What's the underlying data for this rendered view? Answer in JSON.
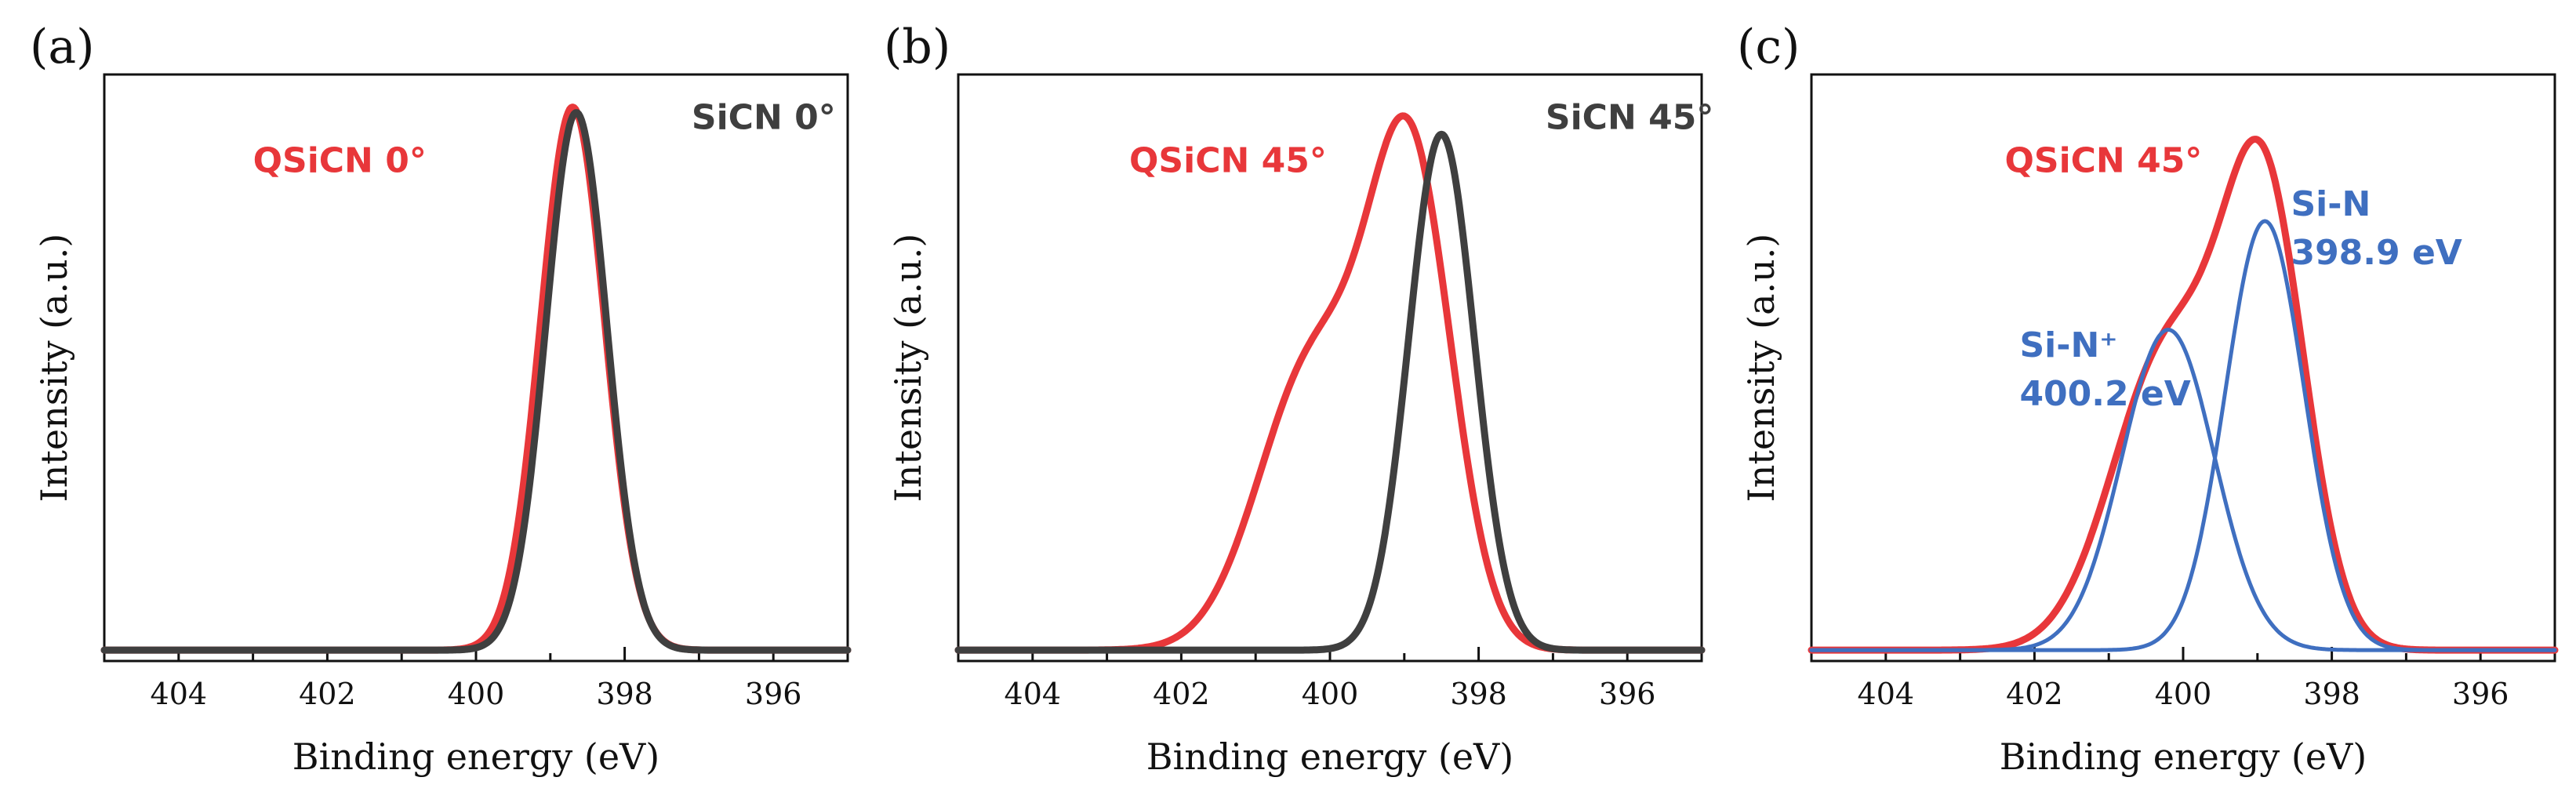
{
  "chart_data": [
    {
      "type": "line",
      "panel_label": "(a)",
      "xlabel": "Binding energy (eV)",
      "ylabel": "Intensity (a.u.)",
      "xlim": [
        405,
        395
      ],
      "ylim": [
        0,
        1.08
      ],
      "x_ticks": [
        404,
        402,
        400,
        398,
        396
      ],
      "series": [
        {
          "name": "QSiCN 0°",
          "color": "#e8373a",
          "components": [
            {
              "center": 398.7,
              "sigma": 0.43,
              "amp": 1.0
            }
          ],
          "baseline": 0.02,
          "label_at": {
            "x": 403.0,
            "y": 0.9
          },
          "label_anchor": "start"
        },
        {
          "name": "SiCN 0°",
          "color": "#3f3f3f",
          "components": [
            {
              "center": 398.65,
              "sigma": 0.41,
              "amp": 0.99
            }
          ],
          "baseline": 0.02,
          "label_at": {
            "x": 397.1,
            "y": 0.98
          },
          "label_anchor": "start"
        }
      ]
    },
    {
      "type": "line",
      "panel_label": "(b)",
      "xlabel": "Binding energy (eV)",
      "ylabel": "Intensity (a.u.)",
      "xlim": [
        405,
        395
      ],
      "ylim": [
        0,
        1.08
      ],
      "x_ticks": [
        404,
        402,
        400,
        398,
        396
      ],
      "series": [
        {
          "name": "QSiCN 45°",
          "color": "#e8373a",
          "components": [
            {
              "center": 398.9,
              "sigma": 0.55,
              "amp": 0.85
            },
            {
              "center": 400.2,
              "sigma": 0.75,
              "amp": 0.53
            }
          ],
          "baseline": 0.02,
          "label_at": {
            "x": 402.7,
            "y": 0.9
          },
          "label_anchor": "start"
        },
        {
          "name": "SiCN 45°",
          "color": "#3f3f3f",
          "components": [
            {
              "center": 398.5,
              "sigma": 0.44,
              "amp": 0.95
            }
          ],
          "baseline": 0.02,
          "label_at": {
            "x": 397.1,
            "y": 0.98
          },
          "label_anchor": "start"
        }
      ]
    },
    {
      "type": "line",
      "panel_label": "(c)",
      "xlabel": "Binding energy (eV)",
      "ylabel": "Intensity (a.u.)",
      "xlim": [
        405,
        395
      ],
      "ylim": [
        0,
        1.08
      ],
      "x_ticks": [
        404,
        402,
        400,
        398,
        396
      ],
      "series": [
        {
          "name": "QSiCN 45°",
          "color": "#e8373a",
          "components": [
            {
              "center": 398.9,
              "sigma": 0.55,
              "amp": 0.8
            },
            {
              "center": 400.2,
              "sigma": 0.75,
              "amp": 0.55
            }
          ],
          "baseline": 0.02,
          "label_at": {
            "x": 402.4,
            "y": 0.9
          },
          "label_anchor": "start"
        },
        {
          "name": "Si-N⁺",
          "name_line2": "400.2 eV",
          "color": "#3f6fc0",
          "components": [
            {
              "center": 400.2,
              "sigma": 0.62,
              "amp": 0.59
            }
          ],
          "baseline": 0.02,
          "label_at": {
            "x": 402.2,
            "y": 0.56
          },
          "label_anchor": "start"
        },
        {
          "name": "Si-N",
          "name_line2": "398.9 eV",
          "color": "#3f6fc0",
          "components": [
            {
              "center": 398.9,
              "sigma": 0.53,
              "amp": 0.79
            }
          ],
          "baseline": 0.02,
          "label_at": {
            "x": 398.55,
            "y": 0.82
          },
          "label_anchor": "start"
        }
      ]
    }
  ]
}
